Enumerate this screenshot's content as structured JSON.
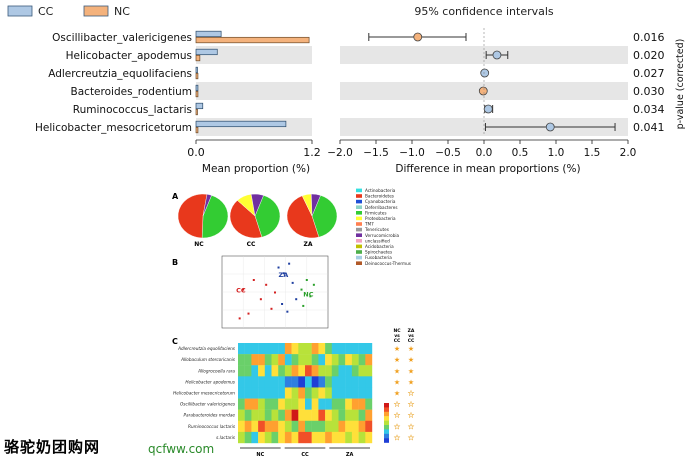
{
  "chart_data": [
    {
      "type": "bar",
      "title": "",
      "xlabel": "Mean proportion (%)",
      "xticks": [
        "0.0",
        "1.2"
      ],
      "xlim": [
        0,
        1.2
      ],
      "legend": [
        {
          "name": "CC",
          "color": "#aec8e4"
        },
        {
          "name": "NC",
          "color": "#f4b27c"
        }
      ],
      "categories": [
        "Oscillibacter_valericigenes",
        "Helicobacter_apodemus",
        "Adlercreutzia_equolifaciens",
        "Bacteroides_rodentium",
        "Ruminococcus_lactaris",
        "Helicobacter_mesocricetorum"
      ],
      "series": [
        {
          "name": "CC",
          "values": [
            0.26,
            0.22,
            0.01,
            0.02,
            0.07,
            0.93
          ]
        },
        {
          "name": "NC",
          "values": [
            1.17,
            0.04,
            0.02,
            0.02,
            0.01,
            0.02
          ]
        }
      ]
    },
    {
      "type": "scatter",
      "title": "95% confidence intervals",
      "xlabel": "Difference in mean proportions (%)",
      "ylabel": "p-value (corrected)",
      "xlim": [
        -2.0,
        2.0
      ],
      "xticks": [
        "−2.0",
        "−1.5",
        "−1.0",
        "−0.5",
        "0.0",
        "0.5",
        "1.0",
        "1.5",
        "2.0"
      ],
      "points": [
        {
          "name": "Oscillibacter_valericigenes",
          "diff": -0.92,
          "low": -1.6,
          "high": -0.25,
          "group": "NC",
          "p": "0.016"
        },
        {
          "name": "Helicobacter_apodemus",
          "diff": 0.18,
          "low": 0.03,
          "high": 0.33,
          "group": "CC",
          "p": "0.020"
        },
        {
          "name": "Adlercreutzia_equolifaciens",
          "diff": 0.01,
          "low": -0.01,
          "high": 0.03,
          "group": "CC",
          "p": "0.027"
        },
        {
          "name": "Bacteroides_rodentium",
          "diff": -0.01,
          "low": -0.03,
          "high": 0.01,
          "group": "NC",
          "p": "0.030"
        },
        {
          "name": "Ruminococcus_lactaris",
          "diff": 0.06,
          "low": 0.01,
          "high": 0.12,
          "group": "CC",
          "p": "0.034"
        },
        {
          "name": "Helicobacter_mesocricetorum",
          "diff": 0.92,
          "low": 0.02,
          "high": 1.82,
          "group": "CC",
          "p": "0.041"
        }
      ]
    },
    {
      "type": "pie",
      "panel": "A",
      "pies": [
        {
          "label": "NC",
          "slices": [
            {
              "name": "Firmicutes",
              "value": 45,
              "color": "#33cc33"
            },
            {
              "name": "Bacteroidetes",
              "value": 52,
              "color": "#e8381c"
            },
            {
              "name": "Verrucomicrobia",
              "value": 3,
              "color": "#7030a0"
            }
          ]
        },
        {
          "label": "CC",
          "slices": [
            {
              "name": "Firmicutes",
              "value": 40,
              "color": "#33cc33"
            },
            {
              "name": "Bacteroidetes",
              "value": 42,
              "color": "#e8381c"
            },
            {
              "name": "Proteobacteria",
              "value": 10,
              "color": "#ffff33"
            },
            {
              "name": "Verrucomicrobia",
              "value": 8,
              "color": "#7030a0"
            }
          ]
        },
        {
          "label": "ZA",
          "slices": [
            {
              "name": "Firmicutes",
              "value": 40,
              "color": "#33cc33"
            },
            {
              "name": "Bacteroidetes",
              "value": 48,
              "color": "#e8381c"
            },
            {
              "name": "Proteobacteria",
              "value": 6,
              "color": "#ffff33"
            },
            {
              "name": "Verrucomicrobia",
              "value": 6,
              "color": "#7030a0"
            }
          ]
        }
      ],
      "legend": [
        {
          "name": "Actinobacteria",
          "color": "#33e0e0"
        },
        {
          "name": "Bacteroidetes",
          "color": "#e8381c"
        },
        {
          "name": "Cyanobacteria",
          "color": "#1f4fd6"
        },
        {
          "name": "Deferribacteres",
          "color": "#8dd3c7"
        },
        {
          "name": "Firmicutes",
          "color": "#33cc33"
        },
        {
          "name": "Proteobacteria",
          "color": "#ffff33"
        },
        {
          "name": "TM7",
          "color": "#ff7f50"
        },
        {
          "name": "Tenericutes",
          "color": "#999999"
        },
        {
          "name": "Verrucomicrobia",
          "color": "#7030a0"
        },
        {
          "name": "unclassified",
          "color": "#f2a1c1"
        },
        {
          "name": "Acidobacteria",
          "color": "#c0c000"
        },
        {
          "name": "Spirochaetes",
          "color": "#4daf4a"
        },
        {
          "name": "Fusobacteria",
          "color": "#a6cee3"
        },
        {
          "name": "Deinococcus-Thermus",
          "color": "#b15928"
        }
      ]
    },
    {
      "type": "scatter",
      "panel": "B",
      "groups": [
        {
          "label": "CC",
          "color": "#d42020",
          "points": [
            [
              -0.18,
              0.05
            ],
            [
              -0.15,
              -0.2
            ],
            [
              -0.12,
              0.15
            ],
            [
              -0.08,
              -0.05
            ],
            [
              -0.05,
              0.1
            ],
            [
              -0.02,
              -0.15
            ],
            [
              0.0,
              0.02
            ],
            [
              -0.2,
              -0.25
            ]
          ]
        },
        {
          "label": "ZA",
          "color": "#1f3fa0",
          "points": [
            [
              0.02,
              0.28
            ],
            [
              0.05,
              0.22
            ],
            [
              0.08,
              0.32
            ],
            [
              0.1,
              0.12
            ],
            [
              0.04,
              -0.1
            ],
            [
              0.07,
              -0.18
            ],
            [
              0.12,
              -0.05
            ]
          ]
        },
        {
          "label": "NC",
          "color": "#2aa02a",
          "points": [
            [
              0.15,
              0.05
            ],
            [
              0.18,
              0.15
            ],
            [
              0.2,
              -0.02
            ],
            [
              0.22,
              0.1
            ],
            [
              0.16,
              -0.12
            ]
          ]
        }
      ]
    },
    {
      "type": "heatmap",
      "panel": "C",
      "rows": [
        "Adlercreutzia equolifaciens",
        "Allobaculum stercoricanis",
        "Allogrocoella rara",
        "Helicobacter apodemus",
        "Helicobacter mesocricetorum",
        "Oscillibacter valericigenes",
        "Parabacteroides merdae",
        "Ruminococcus lactaris",
        "s.lactaris"
      ],
      "column_groups": [
        "NC",
        "CC",
        "ZA"
      ],
      "compare_headers": [
        "NC vs CC",
        "ZA vs CC"
      ]
    }
  ],
  "watermark": {
    "site_name": "骆驼奶团购网",
    "url": "qcfww.com"
  }
}
